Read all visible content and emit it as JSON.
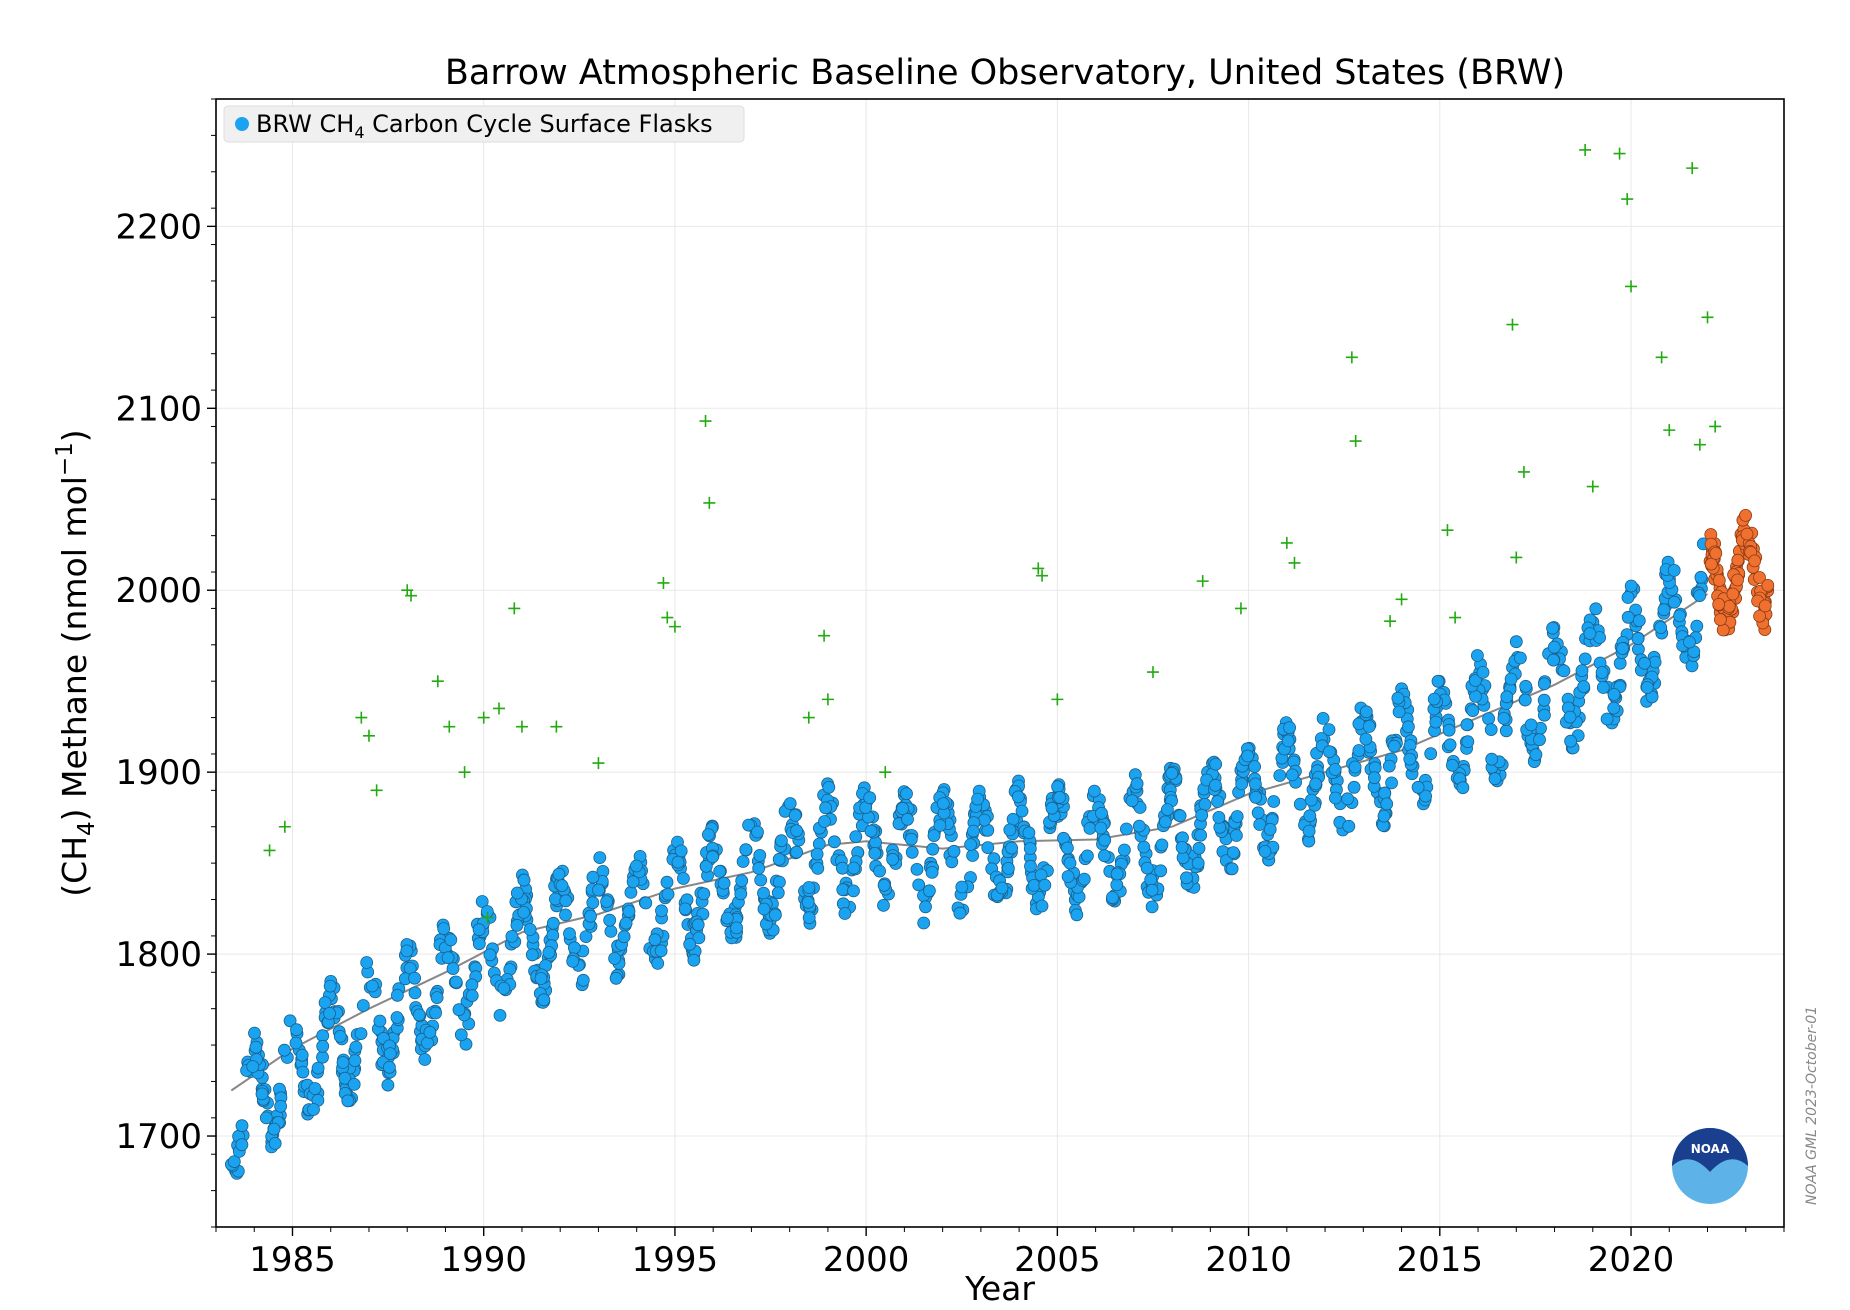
{
  "chart_data": {
    "type": "scatter",
    "title": "Barrow Atmospheric Baseline Observatory, United States (BRW)",
    "xlabel": "Year",
    "ylabel_parts": {
      "pre": "(CH",
      "sub": "4",
      "mid": ") Methane (nmol mol",
      "sup": "−1",
      "post": ")"
    },
    "xlim": [
      1983.0,
      2024.0
    ],
    "ylim": [
      1650,
      2270
    ],
    "x_ticks": [
      1985,
      1990,
      1995,
      2000,
      2005,
      2010,
      2015,
      2020
    ],
    "y_ticks": [
      1700,
      1800,
      1900,
      2000,
      2100,
      2200
    ],
    "grid": true,
    "legend": {
      "position": "top-left",
      "label_parts": {
        "pre": "BRW CH",
        "sub": "4",
        "post": " Carbon Cycle Surface Flasks"
      }
    },
    "colors": {
      "flask": "#1aa3f0",
      "preliminary": "#f07030",
      "flagged": "#22aa11",
      "trend": "#888888"
    },
    "trend": {
      "x": [
        1983.4,
        1985,
        1987,
        1989,
        1991,
        1993,
        1995,
        1997,
        1999,
        2000,
        2002,
        2004,
        2006,
        2008,
        2010,
        2012,
        2014,
        2016,
        2018,
        2020,
        2022
      ],
      "y": [
        1725,
        1748,
        1770,
        1790,
        1812,
        1822,
        1836,
        1845,
        1860,
        1862,
        1858,
        1862,
        1863,
        1870,
        1888,
        1900,
        1912,
        1930,
        1948,
        1970,
        1998
      ]
    },
    "series": [
      {
        "name": "BRW CH4 Carbon Cycle Surface Flasks",
        "kind": "blue",
        "baseline": [
          [
            1983.4,
            1712
          ],
          [
            1985,
            1736
          ],
          [
            1987,
            1760
          ],
          [
            1989,
            1782
          ],
          [
            1991,
            1805
          ],
          [
            1993,
            1818
          ],
          [
            1995,
            1832
          ],
          [
            1997,
            1842
          ],
          [
            1999,
            1858
          ],
          [
            2000,
            1858
          ],
          [
            2002,
            1854
          ],
          [
            2004,
            1858
          ],
          [
            2006,
            1858
          ],
          [
            2008,
            1866
          ],
          [
            2010,
            1884
          ],
          [
            2012,
            1896
          ],
          [
            2014,
            1908
          ],
          [
            2016,
            1926
          ],
          [
            2018,
            1944
          ],
          [
            2020,
            1966
          ],
          [
            2021.9,
            1994
          ]
        ],
        "x_range": [
          1983.4,
          2021.9
        ],
        "amplitude": 55
      },
      {
        "name": "",
        "kind": "orange",
        "baseline": [
          [
            2022,
            2005
          ],
          [
            2023.6,
            2012
          ]
        ],
        "x_range": [
          2022.0,
          2023.6
        ],
        "amplitude": 45
      },
      {
        "name": "",
        "kind": "green",
        "x": [
          1984.4,
          1984.8,
          1986.8,
          1987.0,
          1987.2,
          1988.0,
          1988.1,
          1988.8,
          1989.1,
          1989.5,
          1990.0,
          1990.1,
          1990.4,
          1990.8,
          1991.0,
          1991.9,
          1993.0,
          1994.7,
          1994.8,
          1995.0,
          1995.8,
          1995.9,
          1998.5,
          1998.9,
          1999.0,
          2000.5,
          2004.5,
          2004.6,
          2005.0,
          2007.5,
          2008.8,
          2009.8,
          2011.0,
          2011.2,
          2012.7,
          2012.8,
          2013.7,
          2014.0,
          2015.2,
          2015.4,
          2016.9,
          2017.0,
          2017.2,
          2018.8,
          2019.0,
          2019.7,
          2019.9,
          2020.0,
          2020.8,
          2021.0,
          2021.6,
          2021.8,
          2022.0,
          2022.2
        ],
        "y": [
          1857,
          1870,
          1930,
          1920,
          1890,
          2000,
          1997,
          1950,
          1925,
          1900,
          1930,
          1820,
          1935,
          1990,
          1925,
          1925,
          1905,
          2004,
          1985,
          1980,
          2093,
          2048,
          1930,
          1975,
          1940,
          1900,
          2012,
          2008,
          1940,
          1955,
          2005,
          1990,
          2026,
          2015,
          2128,
          2082,
          1983,
          1995,
          2033,
          1985,
          2146,
          2018,
          2065,
          2242,
          2057,
          2240,
          2215,
          2167,
          2128,
          2088,
          2232,
          2080,
          2150,
          2090
        ]
      }
    ]
  },
  "credit": "NOAA GML 2023-October-01",
  "logo_text": "NOAA"
}
